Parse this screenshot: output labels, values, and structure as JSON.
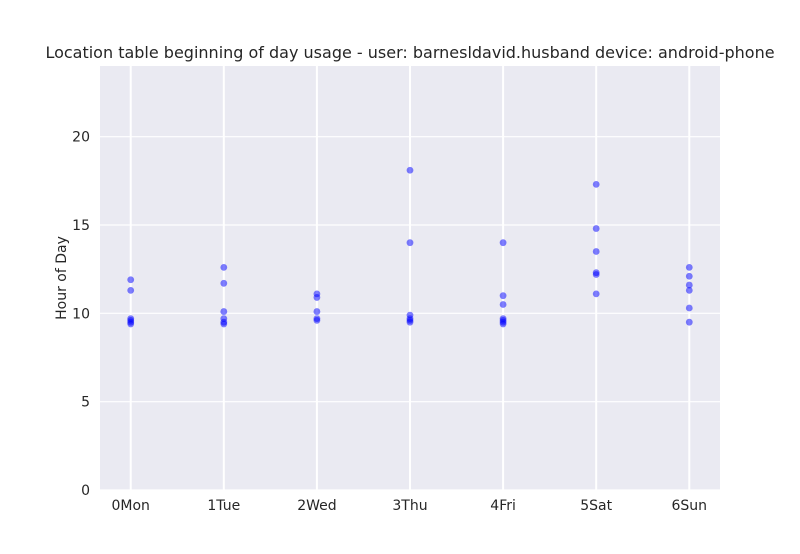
{
  "chart_data": {
    "type": "scatter",
    "title": "Location table beginning of day usage -  user: barnesldavid.husband device: android-phone",
    "xlabel": "",
    "ylabel": "Hour of Day",
    "categories": [
      "0Mon",
      "1Tue",
      "2Wed",
      "3Thu",
      "4Fri",
      "5Sat",
      "6Sun"
    ],
    "ylim": [
      0,
      24
    ],
    "yticks": [
      0,
      5,
      10,
      15,
      20
    ],
    "grid": true,
    "marker_color": "#0000ff",
    "background_color": "#eaeaf2",
    "grid_color": "#ffffff",
    "points": [
      {
        "x": "0Mon",
        "y": 11.9
      },
      {
        "x": "0Mon",
        "y": 11.3
      },
      {
        "x": "0Mon",
        "y": 9.7
      },
      {
        "x": "0Mon",
        "y": 9.6
      },
      {
        "x": "0Mon",
        "y": 9.5
      },
      {
        "x": "0Mon",
        "y": 9.4
      },
      {
        "x": "1Tue",
        "y": 12.6
      },
      {
        "x": "1Tue",
        "y": 11.7
      },
      {
        "x": "1Tue",
        "y": 10.1
      },
      {
        "x": "1Tue",
        "y": 9.7
      },
      {
        "x": "1Tue",
        "y": 9.5
      },
      {
        "x": "1Tue",
        "y": 9.4
      },
      {
        "x": "2Wed",
        "y": 11.1
      },
      {
        "x": "2Wed",
        "y": 10.9
      },
      {
        "x": "2Wed",
        "y": 10.1
      },
      {
        "x": "2Wed",
        "y": 9.7
      },
      {
        "x": "2Wed",
        "y": 9.6
      },
      {
        "x": "3Thu",
        "y": 18.1
      },
      {
        "x": "3Thu",
        "y": 14.0
      },
      {
        "x": "3Thu",
        "y": 9.9
      },
      {
        "x": "3Thu",
        "y": 9.7
      },
      {
        "x": "3Thu",
        "y": 9.6
      },
      {
        "x": "3Thu",
        "y": 9.5
      },
      {
        "x": "4Fri",
        "y": 14.0
      },
      {
        "x": "4Fri",
        "y": 11.0
      },
      {
        "x": "4Fri",
        "y": 10.5
      },
      {
        "x": "4Fri",
        "y": 9.7
      },
      {
        "x": "4Fri",
        "y": 9.6
      },
      {
        "x": "4Fri",
        "y": 9.5
      },
      {
        "x": "4Fri",
        "y": 9.4
      },
      {
        "x": "5Sat",
        "y": 17.3
      },
      {
        "x": "5Sat",
        "y": 14.8
      },
      {
        "x": "5Sat",
        "y": 13.5
      },
      {
        "x": "5Sat",
        "y": 12.3
      },
      {
        "x": "5Sat",
        "y": 12.2
      },
      {
        "x": "5Sat",
        "y": 11.1
      },
      {
        "x": "6Sun",
        "y": 12.6
      },
      {
        "x": "6Sun",
        "y": 12.1
      },
      {
        "x": "6Sun",
        "y": 11.6
      },
      {
        "x": "6Sun",
        "y": 11.3
      },
      {
        "x": "6Sun",
        "y": 10.3
      },
      {
        "x": "6Sun",
        "y": 9.5
      }
    ]
  }
}
